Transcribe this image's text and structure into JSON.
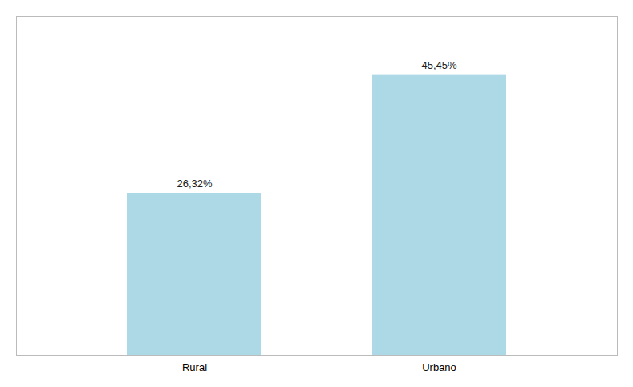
{
  "chart_data": {
    "type": "bar",
    "categories": [
      "Rural",
      "Urbano"
    ],
    "values": [
      26.32,
      45.45
    ],
    "value_labels": [
      "26,32%",
      "45,45%"
    ],
    "data_labels": true,
    "color": "#add8e6",
    "ylim": [
      0,
      55
    ],
    "grid": false,
    "tick_labels": "x"
  }
}
